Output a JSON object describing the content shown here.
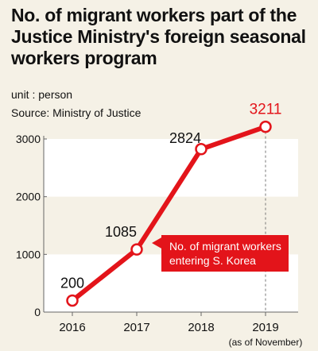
{
  "chart_data": {
    "type": "line",
    "title_lines": [
      "No. of migrant workers part of the",
      "Justice Ministry's foreign seasonal",
      "workers program"
    ],
    "unit": "unit : person",
    "source": "Source: Ministry of Justice",
    "categories": [
      "2016",
      "2017",
      "2018",
      "2019"
    ],
    "category_note": "(as of November)",
    "series": [
      {
        "name": "No. of migrant workers entering S. Korea",
        "values": [
          200,
          1085,
          2824,
          3211
        ]
      }
    ],
    "legend_lines": [
      "No. of migrant workers",
      "entering S. Korea"
    ],
    "data_labels": [
      "200",
      "1085",
      "2824",
      "3211"
    ],
    "ylim": [
      0,
      3000
    ],
    "yticks": [
      0,
      1000,
      2000,
      3000
    ],
    "ytick_labels": [
      "0",
      "1000",
      "2000",
      "3000"
    ],
    "colors": {
      "line": "#e3141a",
      "background": "#f5f1e6",
      "band": "#ffffff",
      "highlight_label": "#e3141a"
    }
  }
}
